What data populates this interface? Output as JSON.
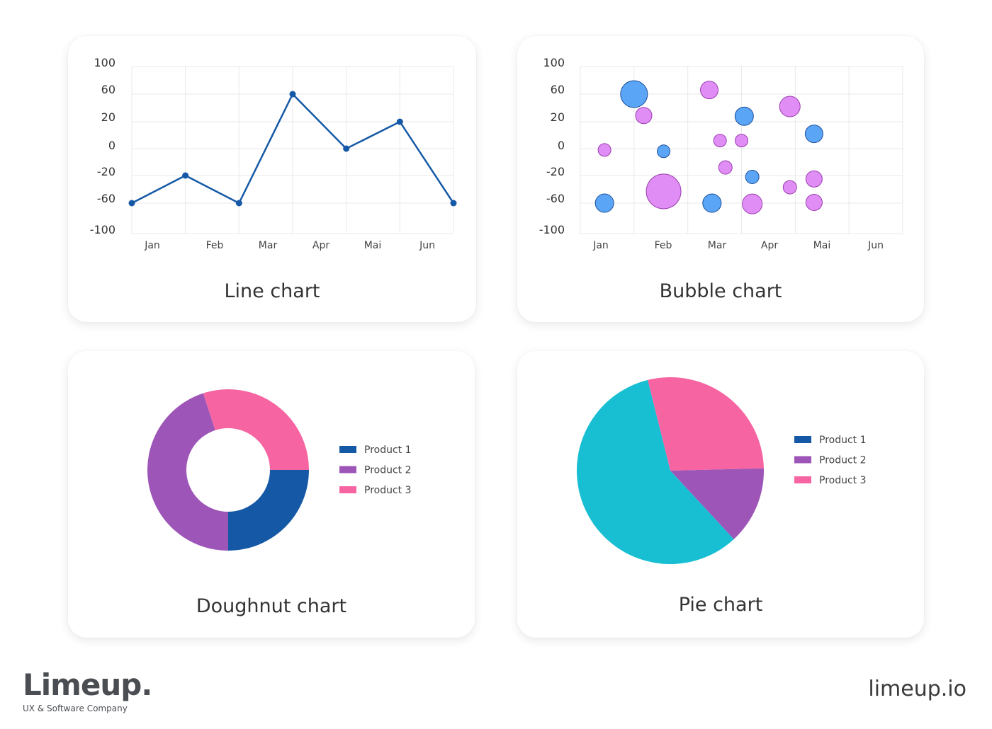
{
  "colors": {
    "line": "#1559a6",
    "bubble_blue": "#5aa5f5",
    "bubble_purple": "#e08ef5",
    "product_1": "#1559a6",
    "product_2": "#9d55b7",
    "product_3": "#f764a2",
    "pie_cyan": "#18bfd3",
    "grid": "#e8e8e8"
  },
  "chart_data": [
    {
      "type": "line",
      "title": "Line chart",
      "y_ticks": [
        "100",
        "60",
        "20",
        "0",
        "-20",
        "-60",
        "-100"
      ],
      "x_tick_labels": [
        "Jan",
        "Feb",
        "Mar",
        "Apr",
        "Mai",
        "Jun"
      ],
      "grid": true,
      "series": [
        {
          "values": [
            "-60",
            "-20",
            "-60",
            "60",
            "0",
            "20",
            "-60"
          ]
        }
      ]
    },
    {
      "type": "scatter",
      "title": "Bubble chart",
      "y_ticks": [
        "100",
        "60",
        "20",
        "0",
        "-20",
        "-60",
        "-100"
      ],
      "x_tick_labels": [
        "Jan",
        "Feb",
        "Mar",
        "Apr",
        "Mai",
        "Jun"
      ],
      "grid": true,
      "series": [
        {
          "color": "blue",
          "points": [
            {
              "x": 2.0,
              "y": "60",
              "r": 19
            },
            {
              "x": 1.45,
              "y": "-60",
              "r": 13
            },
            {
              "x": 2.55,
              "y": "-2",
              "r": 9
            },
            {
              "x": 3.45,
              "y": "-60",
              "r": 13
            },
            {
              "x": 4.05,
              "y": "28",
              "r": 13
            },
            {
              "x": 4.2,
              "y": "-22",
              "r": 9.5
            },
            {
              "x": 5.35,
              "y": "11",
              "r": 12.5
            }
          ]
        },
        {
          "color": "purple",
          "points": [
            {
              "x": 1.45,
              "y": "-1",
              "r": 9
            },
            {
              "x": 2.18,
              "y": "29",
              "r": 11.5
            },
            {
              "x": 2.55,
              "y": "-43",
              "r": 24.5
            },
            {
              "x": 3.4,
              "y": "66",
              "r": 12.5
            },
            {
              "x": 3.6,
              "y": "6",
              "r": 9
            },
            {
              "x": 3.7,
              "y": "-14",
              "r": 9.5
            },
            {
              "x": 4.0,
              "y": "6",
              "r": 9
            },
            {
              "x": 4.2,
              "y": "-61",
              "r": 14
            },
            {
              "x": 4.9,
              "y": "42",
              "r": 14.5
            },
            {
              "x": 4.9,
              "y": "-37",
              "r": 9.5
            },
            {
              "x": 5.35,
              "y": "-25",
              "r": 11.5
            },
            {
              "x": 5.35,
              "y": "-59",
              "r": 11.5
            }
          ]
        }
      ]
    },
    {
      "type": "pie",
      "subtype": "doughnut",
      "title": "Doughnut chart",
      "legend": "right",
      "labels": [
        "Product 1",
        "Product 2",
        "Product 3"
      ],
      "values": [
        25,
        45,
        30
      ]
    },
    {
      "type": "pie",
      "title": "Pie chart",
      "legend": "right",
      "labels": [
        "Product 1",
        "Product 2",
        "Product 3"
      ],
      "slices": [
        {
          "value": 28.5,
          "color": "product_3"
        },
        {
          "value": 13.5,
          "color": "product_2"
        },
        {
          "value": 58.0,
          "color": "pie_cyan"
        }
      ]
    }
  ],
  "brand": {
    "name": "Limeup.",
    "tagline": "UX & Software Company",
    "site": "limeup.io"
  }
}
